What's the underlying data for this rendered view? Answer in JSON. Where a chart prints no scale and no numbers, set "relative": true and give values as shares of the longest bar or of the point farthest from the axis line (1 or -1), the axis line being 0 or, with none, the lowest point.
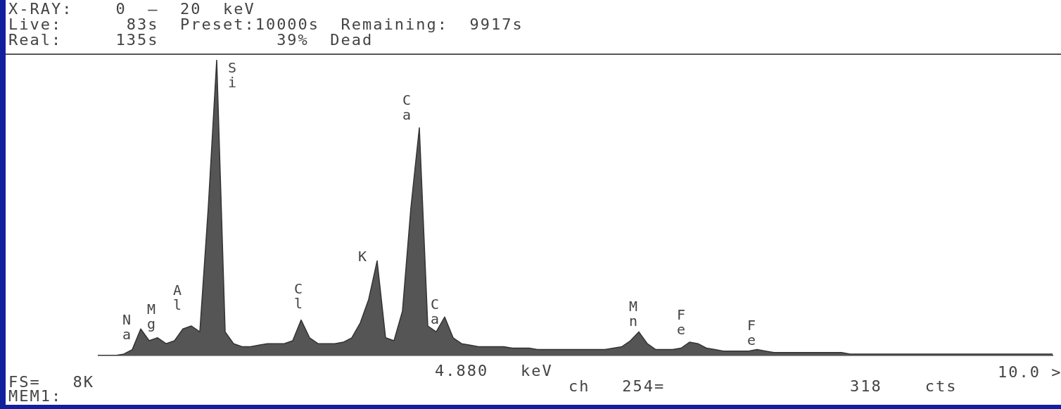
{
  "chart_data": {
    "type": "area",
    "relative": true,
    "color": "#555555",
    "categories": [
      null,
      null,
      null,
      null,
      null,
      null,
      null,
      null,
      null,
      null,
      null,
      null,
      null,
      null,
      null,
      null,
      null,
      null,
      null,
      null,
      null,
      null,
      null,
      null,
      null,
      null,
      null,
      null,
      null,
      null,
      null,
      null,
      null,
      null,
      null,
      null,
      null,
      null,
      null,
      null,
      null,
      null,
      null,
      null,
      null,
      null,
      null,
      null,
      null,
      null,
      null,
      null,
      null,
      null,
      null,
      null,
      null,
      null,
      null,
      null,
      null,
      null,
      null,
      null,
      null,
      null,
      null,
      null,
      null,
      null,
      null,
      null,
      null,
      null,
      null,
      null,
      null,
      null,
      null,
      null,
      null,
      null,
      null,
      null,
      null,
      null,
      null,
      null,
      null,
      null,
      null,
      null,
      null,
      null,
      null,
      null,
      null,
      null,
      null,
      null,
      null,
      null,
      null,
      null,
      null,
      null,
      null,
      null,
      null,
      null,
      null,
      null,
      null,
      null
    ],
    "values": [
      0,
      0,
      0,
      0.005,
      0.02,
      0.09,
      0.05,
      0.06,
      0.04,
      0.05,
      0.09,
      0.1,
      0.08,
      0.5,
      1,
      0.08,
      0.04,
      0.03,
      0.03,
      0.035,
      0.04,
      0.04,
      0.04,
      0.05,
      0.12,
      0.06,
      0.04,
      0.04,
      0.04,
      0.045,
      0.06,
      0.11,
      0.19,
      0.32,
      0.06,
      0.05,
      0.15,
      0.5,
      0.77,
      0.1,
      0.08,
      0.13,
      0.06,
      0.04,
      0.035,
      0.03,
      0.03,
      0.03,
      0.03,
      0.025,
      0.025,
      0.025,
      0.02,
      0.02,
      0.02,
      0.02,
      0.02,
      0.02,
      0.02,
      0.02,
      0.02,
      0.025,
      0.03,
      0.05,
      0.08,
      0.04,
      0.02,
      0.02,
      0.02,
      0.025,
      0.045,
      0.04,
      0.025,
      0.02,
      0.015,
      0.015,
      0.015,
      0.015,
      0.02,
      0.015,
      0.01,
      0.01,
      0.01,
      0.01,
      0.01,
      0.01,
      0.01,
      0.01,
      0.01,
      0.005,
      0.005,
      0.005,
      0.005,
      0.005,
      0.005,
      0.005,
      0.005,
      0.005,
      0.005,
      0.005,
      0.005,
      0.005,
      0.005,
      0.005,
      0.005,
      0.005,
      0.005,
      0.005,
      0.005,
      0.005,
      0.005,
      0.005,
      0.005,
      0.005
    ],
    "annotations": [
      "X-RAY:    0  —  20  keV",
      "Live:      83s  Preset:10000s  Remaining:  9917s",
      "Real:     135s           39%  Dead",
      "FS=   8K",
      "MEM1:",
      "4.880   keV",
      "ch   254=",
      "318    cts",
      "10.0 >",
      "Na",
      "Mg",
      "Al",
      "Si",
      "Cl",
      "K",
      "Ca",
      "Ca",
      "Mn",
      "Fe",
      "Fe"
    ]
  }
}
